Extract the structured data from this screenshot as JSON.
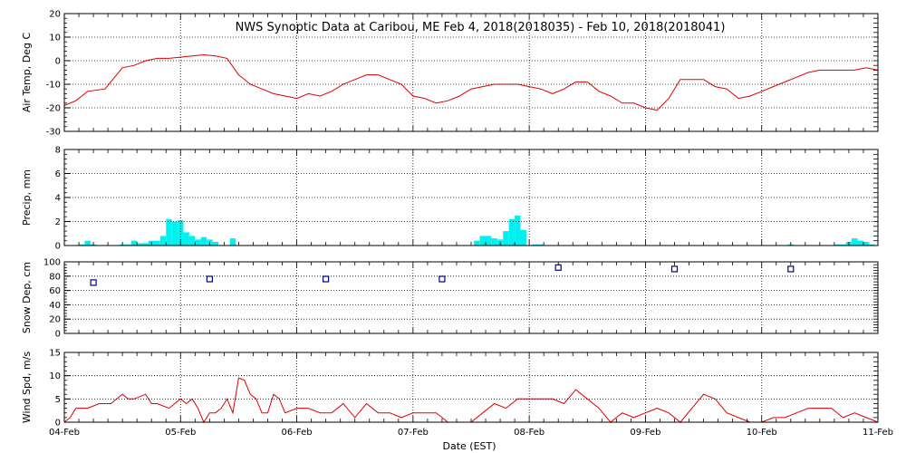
{
  "title": "NWS Synoptic Data at Caribou, ME   Feb  4, 2018(2018035) - Feb 10, 2018(2018041)",
  "xlabel": "Date (EST)",
  "colors": {
    "temp": "#e00000",
    "precip": "#00f0f0",
    "snow": "#00008b",
    "wind": "#e00000",
    "grid": "#000000"
  },
  "chart_data": [
    {
      "type": "line",
      "name": "air-temp",
      "ylabel": "Air Temp, Deg C",
      "ylim": [
        -30,
        20
      ],
      "yticks": [
        -30,
        -20,
        -10,
        0,
        10,
        20
      ],
      "xlim": [
        0,
        7
      ],
      "xticks": [
        0,
        1,
        2,
        3,
        4,
        5,
        6,
        7
      ],
      "xtick_labels": [
        "04-Feb",
        "05-Feb",
        "06-Feb",
        "07-Feb",
        "08-Feb",
        "09-Feb",
        "10-Feb",
        "11-Feb"
      ],
      "grid": true,
      "x": [
        0,
        0.1,
        0.2,
        0.35,
        0.5,
        0.6,
        0.7,
        0.8,
        0.9,
        1.0,
        1.1,
        1.2,
        1.3,
        1.4,
        1.5,
        1.6,
        1.7,
        1.8,
        1.9,
        2.0,
        2.1,
        2.2,
        2.3,
        2.4,
        2.5,
        2.6,
        2.7,
        2.8,
        2.9,
        3.0,
        3.1,
        3.2,
        3.3,
        3.4,
        3.5,
        3.6,
        3.7,
        3.8,
        3.9,
        4.0,
        4.1,
        4.2,
        4.3,
        4.4,
        4.5,
        4.6,
        4.7,
        4.8,
        4.9,
        5.0,
        5.1,
        5.2,
        5.3,
        5.4,
        5.5,
        5.6,
        5.7,
        5.8,
        5.9,
        6.0,
        6.1,
        6.2,
        6.3,
        6.4,
        6.5,
        6.6,
        6.7,
        6.8,
        6.9,
        7.0
      ],
      "y": [
        -19,
        -17,
        -13,
        -12,
        -3,
        -2,
        0,
        1,
        1,
        1.5,
        2,
        2.5,
        2,
        1,
        -6,
        -10,
        -12,
        -14,
        -15,
        -16,
        -14,
        -15,
        -13,
        -10,
        -8,
        -6,
        -6,
        -8,
        -10,
        -15,
        -16,
        -18,
        -17,
        -15,
        -12,
        -11,
        -10,
        -10,
        -10,
        -11,
        -12,
        -14,
        -12,
        -9,
        -9,
        -13,
        -15,
        -18,
        -18,
        -20,
        -21,
        -16,
        -8,
        -8,
        -8,
        -11,
        -12,
        -16,
        -15,
        -13,
        -11,
        -9,
        -7,
        -5,
        -4,
        -4,
        -4,
        -4,
        -3,
        -4
      ]
    },
    {
      "type": "bar",
      "name": "precip",
      "ylabel": "Precip, mm",
      "ylim": [
        0,
        8
      ],
      "yticks": [
        0,
        2,
        4,
        6,
        8
      ],
      "xlim": [
        0,
        7
      ],
      "xticks": [
        0,
        1,
        2,
        3,
        4,
        5,
        6,
        7
      ],
      "xtick_labels": [
        "04-Feb",
        "05-Feb",
        "06-Feb",
        "07-Feb",
        "08-Feb",
        "09-Feb",
        "10-Feb",
        "11-Feb"
      ],
      "grid": true,
      "bin_width": 0.05,
      "x": [
        0.15,
        0.2,
        0.25,
        0.5,
        0.55,
        0.6,
        0.65,
        0.7,
        0.75,
        0.8,
        0.85,
        0.9,
        0.95,
        1.0,
        1.05,
        1.1,
        1.15,
        1.2,
        1.25,
        1.3,
        1.45,
        3.55,
        3.6,
        3.65,
        3.7,
        3.75,
        3.8,
        3.85,
        3.9,
        3.95,
        4.05,
        4.1,
        6.25,
        6.65,
        6.7,
        6.75,
        6.8,
        6.85,
        6.9,
        6.95
      ],
      "y": [
        0.1,
        0.4,
        0.1,
        0.1,
        0.1,
        0.4,
        0.2,
        0.2,
        0.4,
        0.4,
        0.8,
        2.2,
        2.0,
        2.1,
        1.1,
        0.8,
        0.5,
        0.7,
        0.5,
        0.3,
        0.6,
        0.4,
        0.8,
        0.8,
        0.6,
        0.5,
        1.2,
        2.2,
        2.5,
        1.3,
        0.1,
        0.1,
        0.1,
        0.1,
        0.1,
        0.3,
        0.6,
        0.4,
        0.3,
        0.1
      ]
    },
    {
      "type": "scatter",
      "name": "snow-depth",
      "ylabel": "Snow Dep, cm",
      "ylim": [
        0,
        100
      ],
      "yticks": [
        0,
        20,
        40,
        60,
        80,
        100
      ],
      "xlim": [
        0,
        7
      ],
      "xticks": [
        0,
        1,
        2,
        3,
        4,
        5,
        6,
        7
      ],
      "xtick_labels": [
        "04-Feb",
        "05-Feb",
        "06-Feb",
        "07-Feb",
        "08-Feb",
        "09-Feb",
        "10-Feb",
        "11-Feb"
      ],
      "grid": true,
      "x": [
        0.25,
        1.25,
        2.25,
        3.25,
        4.25,
        5.25,
        6.25
      ],
      "y": [
        71,
        76,
        76,
        76,
        92,
        90,
        90
      ]
    },
    {
      "type": "line",
      "name": "wind-speed",
      "ylabel": "Wind Spd, m/s",
      "ylim": [
        0,
        15
      ],
      "yticks": [
        0,
        5,
        10,
        15
      ],
      "xlim": [
        0,
        7
      ],
      "xticks": [
        0,
        1,
        2,
        3,
        4,
        5,
        6,
        7
      ],
      "xtick_labels": [
        "04-Feb",
        "05-Feb",
        "06-Feb",
        "07-Feb",
        "08-Feb",
        "09-Feb",
        "10-Feb",
        "11-Feb"
      ],
      "grid": true,
      "x": [
        0,
        0.05,
        0.1,
        0.15,
        0.2,
        0.3,
        0.4,
        0.5,
        0.55,
        0.6,
        0.7,
        0.75,
        0.8,
        0.9,
        1.0,
        1.05,
        1.1,
        1.15,
        1.2,
        1.25,
        1.3,
        1.35,
        1.4,
        1.45,
        1.5,
        1.55,
        1.6,
        1.65,
        1.7,
        1.75,
        1.8,
        1.85,
        1.9,
        2.0,
        2.1,
        2.2,
        2.3,
        2.4,
        2.5,
        2.6,
        2.7,
        2.8,
        2.9,
        3.0,
        3.1,
        3.2,
        3.3,
        3.4,
        3.5,
        3.6,
        3.7,
        3.8,
        3.9,
        4.0,
        4.1,
        4.2,
        4.3,
        4.4,
        4.5,
        4.6,
        4.7,
        4.8,
        4.9,
        5.0,
        5.1,
        5.2,
        5.3,
        5.4,
        5.5,
        5.6,
        5.7,
        5.8,
        5.9,
        6.0,
        6.1,
        6.2,
        6.3,
        6.4,
        6.5,
        6.6,
        6.7,
        6.8,
        6.9,
        7.0
      ],
      "y": [
        0,
        1,
        3,
        3,
        3,
        4,
        4,
        6,
        5,
        5,
        6,
        4,
        4,
        3,
        5,
        4,
        5,
        3,
        0,
        2,
        2,
        3,
        5,
        2,
        9.5,
        9,
        6,
        5,
        2,
        2,
        6,
        5,
        2,
        3,
        3,
        2,
        2,
        4,
        1,
        4,
        2,
        2,
        1,
        2,
        2,
        2,
        0,
        0,
        0,
        2,
        4,
        3,
        5,
        5,
        5,
        5,
        4,
        7,
        5,
        3,
        0,
        2,
        1,
        2,
        3,
        2,
        0,
        3,
        6,
        5,
        2,
        1,
        0,
        0,
        1,
        1,
        2,
        3,
        3,
        3,
        1,
        2,
        1,
        0
      ]
    }
  ]
}
